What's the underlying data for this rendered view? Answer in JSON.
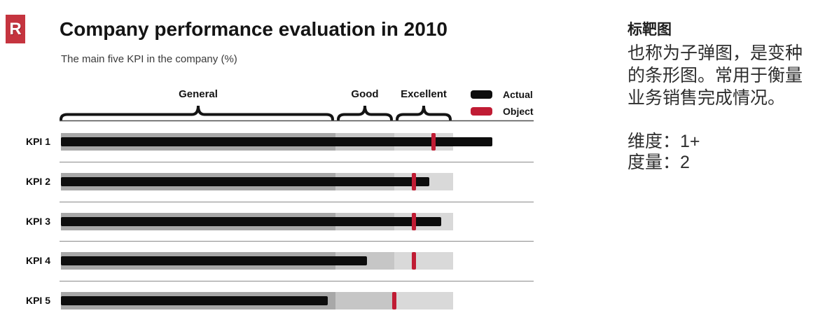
{
  "logo": {
    "letter": "R"
  },
  "chart_data": {
    "type": "bullet",
    "title": "Company performance evaluation in 2010",
    "subtitle": "The main five KPI in the company (%)",
    "categories": [
      "KPI 1",
      "KPI 2",
      "KPI 3",
      "KPI 4",
      "KPI 5"
    ],
    "series": [
      {
        "name": "Actual",
        "values": [
          110,
          94,
          97,
          78,
          68
        ]
      },
      {
        "name": "Object",
        "values": [
          95,
          90,
          90,
          90,
          85
        ]
      }
    ],
    "zones": [
      {
        "label": "General",
        "range": [
          0,
          70
        ],
        "color": "#a8a8a8"
      },
      {
        "label": "Good",
        "range": [
          70,
          85
        ],
        "color": "#c6c6c6"
      },
      {
        "label": "Excellent",
        "range": [
          85,
          100
        ],
        "color": "#d9d9d9"
      }
    ],
    "xlim": [
      0,
      100
    ],
    "legend": [
      {
        "label": "Actual",
        "color": "#0d0d0d"
      },
      {
        "label": "Object",
        "color": "#c01c34"
      }
    ],
    "legend_position": "top-right",
    "grid": false
  },
  "colors": {
    "actual": "#0d0d0d",
    "object": "#c01c34",
    "axis_line": "#4f4f4f",
    "separator": "#8a8a8a",
    "bracket": "#141414",
    "logo_bg": "#c5343f"
  },
  "side_panel": {
    "heading": "标靶图",
    "body_lines": [
      "也称为子弹图，是变种",
      "的条形图。常用于衡量",
      "业务销售完成情况。"
    ],
    "meta_lines": [
      "维度：1+",
      "度量：2"
    ]
  }
}
